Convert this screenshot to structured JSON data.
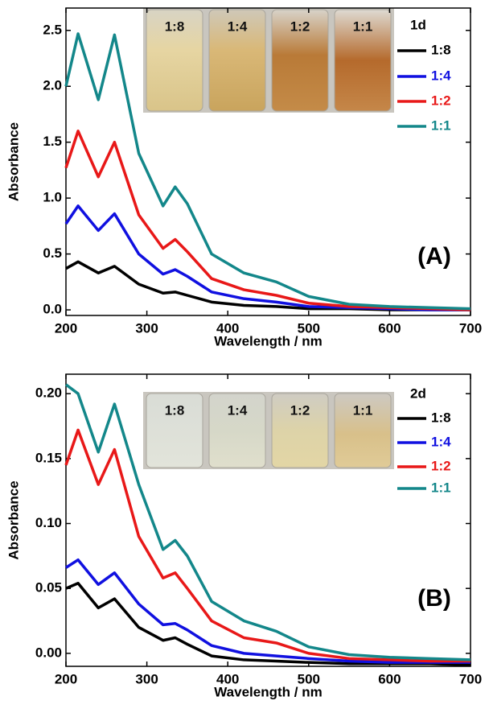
{
  "chart_data": [
    {
      "type": "line",
      "xlabel": "Wavelength / nm",
      "ylabel": "Absorbance",
      "annotation": "(A)",
      "legend_title": "1d",
      "photo_labels": [
        "1:8",
        "1:4",
        "1:2",
        "1:1"
      ],
      "x": [
        200,
        215,
        240,
        260,
        290,
        320,
        335,
        350,
        380,
        420,
        460,
        500,
        550,
        600,
        650,
        700
      ],
      "series": [
        {
          "name": "1:8",
          "color": "#000000",
          "values": [
            0.37,
            0.43,
            0.33,
            0.39,
            0.23,
            0.15,
            0.16,
            0.13,
            0.07,
            0.04,
            0.03,
            0.01,
            0.01,
            0,
            0,
            0
          ]
        },
        {
          "name": "1:4",
          "color": "#1010e0",
          "values": [
            0.77,
            0.93,
            0.71,
            0.86,
            0.5,
            0.32,
            0.36,
            0.3,
            0.16,
            0.1,
            0.07,
            0.03,
            0.02,
            0.01,
            0,
            0
          ]
        },
        {
          "name": "1:2",
          "color": "#e81818",
          "values": [
            1.27,
            1.6,
            1.19,
            1.5,
            0.85,
            0.55,
            0.63,
            0.52,
            0.28,
            0.18,
            0.13,
            0.06,
            0.03,
            0.02,
            0.01,
            0
          ]
        },
        {
          "name": "1:1",
          "color": "#13878a",
          "values": [
            2.0,
            2.47,
            1.88,
            2.46,
            1.4,
            0.93,
            1.1,
            0.95,
            0.5,
            0.33,
            0.25,
            0.12,
            0.05,
            0.03,
            0.02,
            0.01
          ]
        }
      ],
      "xlim": [
        200,
        700
      ],
      "xticks": [
        200,
        300,
        400,
        500,
        600,
        700
      ],
      "ylim": [
        -0.05,
        2.7
      ],
      "yticks": [
        {
          "value": 0,
          "label": "0.0"
        },
        0.5,
        {
          "value": 1,
          "label": "1.0"
        },
        1.5,
        {
          "value": 2,
          "label": "2.0"
        },
        2.5
      ]
    },
    {
      "type": "line",
      "xlabel": "Wavelength / nm",
      "ylabel": "Absorbance",
      "annotation": "(B)",
      "legend_title": "2d",
      "photo_labels": [
        "1:8",
        "1:4",
        "1:2",
        "1:1"
      ],
      "x": [
        200,
        215,
        240,
        260,
        290,
        320,
        335,
        350,
        380,
        420,
        460,
        500,
        550,
        600,
        650,
        700
      ],
      "series": [
        {
          "name": "1:8",
          "color": "#000000",
          "values": [
            0.05,
            0.054,
            0.035,
            0.042,
            0.02,
            0.01,
            0.012,
            0.007,
            -0.002,
            -0.005,
            -0.006,
            -0.007,
            -0.008,
            -0.008,
            -0.008,
            -0.009
          ]
        },
        {
          "name": "1:4",
          "color": "#1010e0",
          "values": [
            0.066,
            0.072,
            0.053,
            0.062,
            0.038,
            0.022,
            0.023,
            0.018,
            0.006,
            0,
            -0.002,
            -0.004,
            -0.006,
            -0.007,
            -0.007,
            -0.007
          ]
        },
        {
          "name": "1:2",
          "color": "#e81818",
          "values": [
            0.145,
            0.172,
            0.13,
            0.157,
            0.09,
            0.058,
            0.062,
            0.05,
            0.025,
            0.012,
            0.008,
            0,
            -0.004,
            -0.005,
            -0.006,
            -0.006
          ]
        },
        {
          "name": "1:1",
          "color": "#13878a",
          "values": [
            0.207,
            0.2,
            0.155,
            0.192,
            0.13,
            0.08,
            0.087,
            0.075,
            0.04,
            0.025,
            0.017,
            0.005,
            -0.001,
            -0.003,
            -0.004,
            -0.005
          ]
        }
      ],
      "xlim": [
        200,
        700
      ],
      "xticks": [
        200,
        300,
        400,
        500,
        600,
        700
      ],
      "ylim": [
        -0.01,
        0.215
      ],
      "yticks": [
        {
          "value": 0,
          "label": "0.00"
        },
        0.05,
        {
          "value": 0.1,
          "label": "0.10"
        },
        0.15,
        {
          "value": 0.2,
          "label": "0.20"
        }
      ]
    }
  ]
}
